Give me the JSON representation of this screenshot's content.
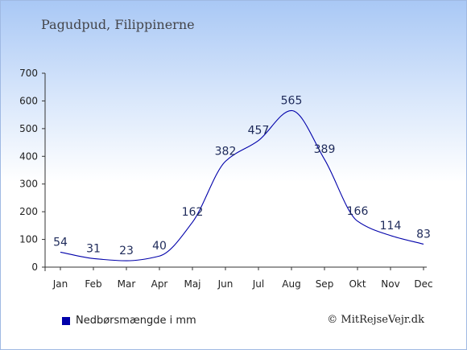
{
  "page": {
    "title": "Pagudpud, Filippinerne",
    "credit": "© MitRejseVejr.dk"
  },
  "chart_data": {
    "type": "line",
    "title": "Pagudpud, Filippinerne",
    "xlabel": "",
    "ylabel": "",
    "categories": [
      "Jan",
      "Feb",
      "Mar",
      "Apr",
      "Maj",
      "Jun",
      "Jul",
      "Aug",
      "Sep",
      "Okt",
      "Nov",
      "Dec"
    ],
    "series": [
      {
        "name": "Nedbørsmængde i mm",
        "values": [
          54,
          31,
          23,
          40,
          162,
          382,
          457,
          565,
          389,
          166,
          114,
          83
        ],
        "color": "#0000aa"
      }
    ],
    "ylim": [
      0,
      700
    ],
    "yticks": [
      0,
      100,
      200,
      300,
      400,
      500,
      600,
      700
    ],
    "data_labels": true,
    "grid": false,
    "legend_position": "bottom-left"
  }
}
